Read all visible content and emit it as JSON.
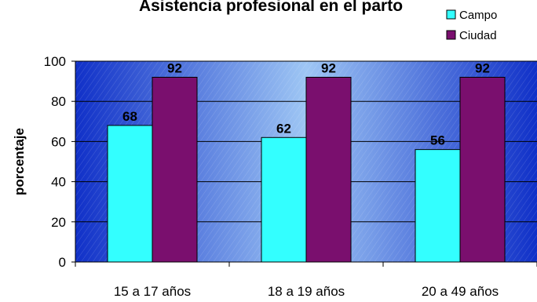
{
  "chart_data": {
    "type": "bar",
    "title": "Asistencia profesional en el parto",
    "ylabel": "porcentaje",
    "xlabel": "",
    "categories": [
      "15 a 17 años",
      "18 a 19 años",
      "20 a 49 años"
    ],
    "series": [
      {
        "name": "Campo",
        "values": [
          68,
          62,
          56
        ],
        "color": "#33FFFF"
      },
      {
        "name": "Ciudad",
        "values": [
          92,
          92,
          92
        ],
        "color": "#7A0F6E"
      }
    ],
    "ylim": [
      0,
      100
    ],
    "yticks": [
      "0",
      "20",
      "40",
      "60",
      "80",
      "100"
    ],
    "grid": true,
    "legend_position": "top-right",
    "background": "blue-gradient-diagonal-hatch"
  }
}
